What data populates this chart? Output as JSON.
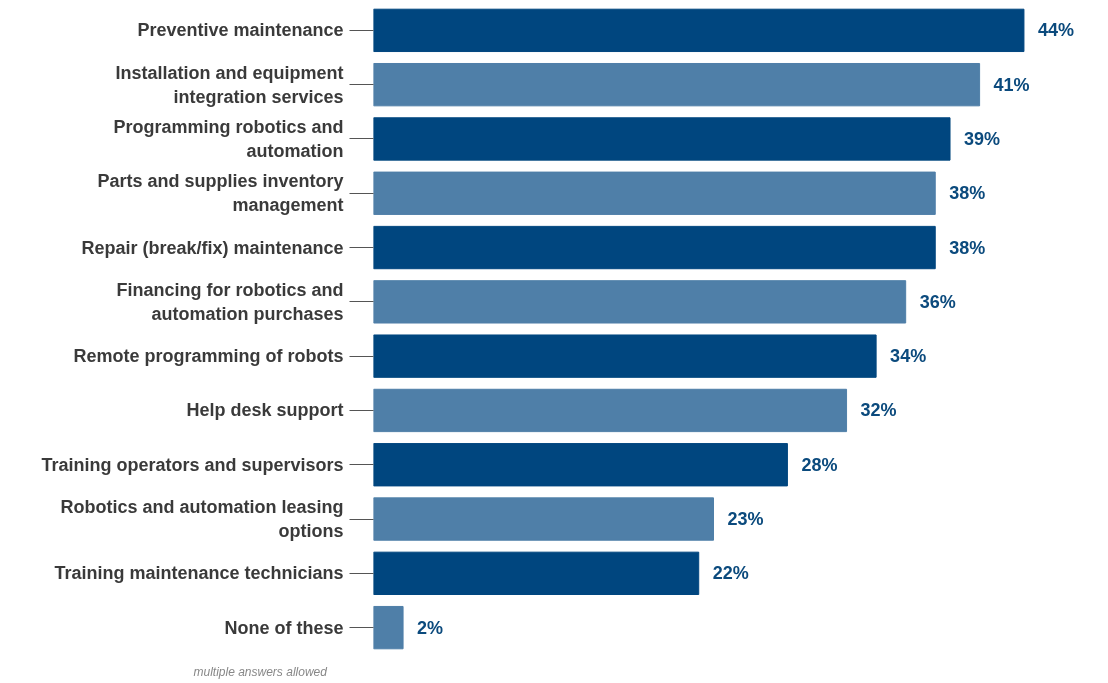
{
  "chart_data": {
    "type": "bar",
    "orientation": "horizontal",
    "categories": [
      "Preventive maintenance",
      "Installation and equipment\nintegration services",
      "Programming robotics and\nautomation",
      "Parts and supplies inventory\nmanagement",
      "Repair (break/fix) maintenance",
      "Financing for robotics and\nautomation purchases",
      "Remote programming of robots",
      "Help desk support",
      "Training operators and supervisors",
      "Robotics and automation leasing\noptions",
      "Training maintenance technicians",
      "None of these"
    ],
    "values": [
      44,
      41,
      39,
      38,
      38,
      36,
      34,
      32,
      28,
      23,
      22,
      2
    ],
    "colors": [
      "#00467f",
      "#4f7fa8",
      "#00467f",
      "#4f7fa8",
      "#00467f",
      "#4f7fa8",
      "#00467f",
      "#4f7fa8",
      "#00467f",
      "#4f7fa8",
      "#00467f",
      "#4f7fa8"
    ],
    "value_labels": [
      "44%",
      "41%",
      "39%",
      "38%",
      "38%",
      "36%",
      "34%",
      "32%",
      "28%",
      "23%",
      "22%",
      "2%"
    ],
    "annotations": [
      "multiple answers allowed"
    ],
    "grid": false
  }
}
